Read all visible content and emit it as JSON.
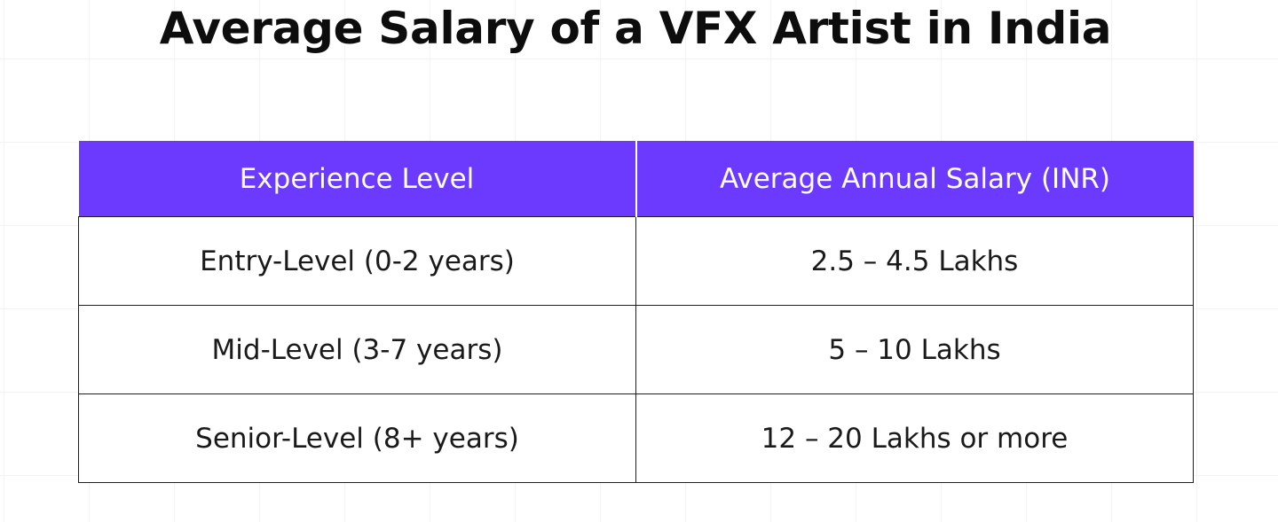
{
  "title": "Average Salary of a VFX Artist in India",
  "table": {
    "header": {
      "experience": "Experience Level",
      "salary": "Average Annual Salary (INR)"
    },
    "rows": [
      {
        "experience": "Entry-Level (0-2 years)",
        "salary": "2.5 – 4.5 Lakhs"
      },
      {
        "experience": "Mid-Level (3-7 years)",
        "salary": "5 – 10 Lakhs"
      },
      {
        "experience": "Senior-Level (8+ years)",
        "salary": "12 – 20 Lakhs or more"
      }
    ]
  },
  "colors": {
    "header_background": "#6c3aff",
    "header_text": "#ffffff",
    "title_text": "#0d0d0d",
    "cell_border": "#1e1e1e"
  }
}
